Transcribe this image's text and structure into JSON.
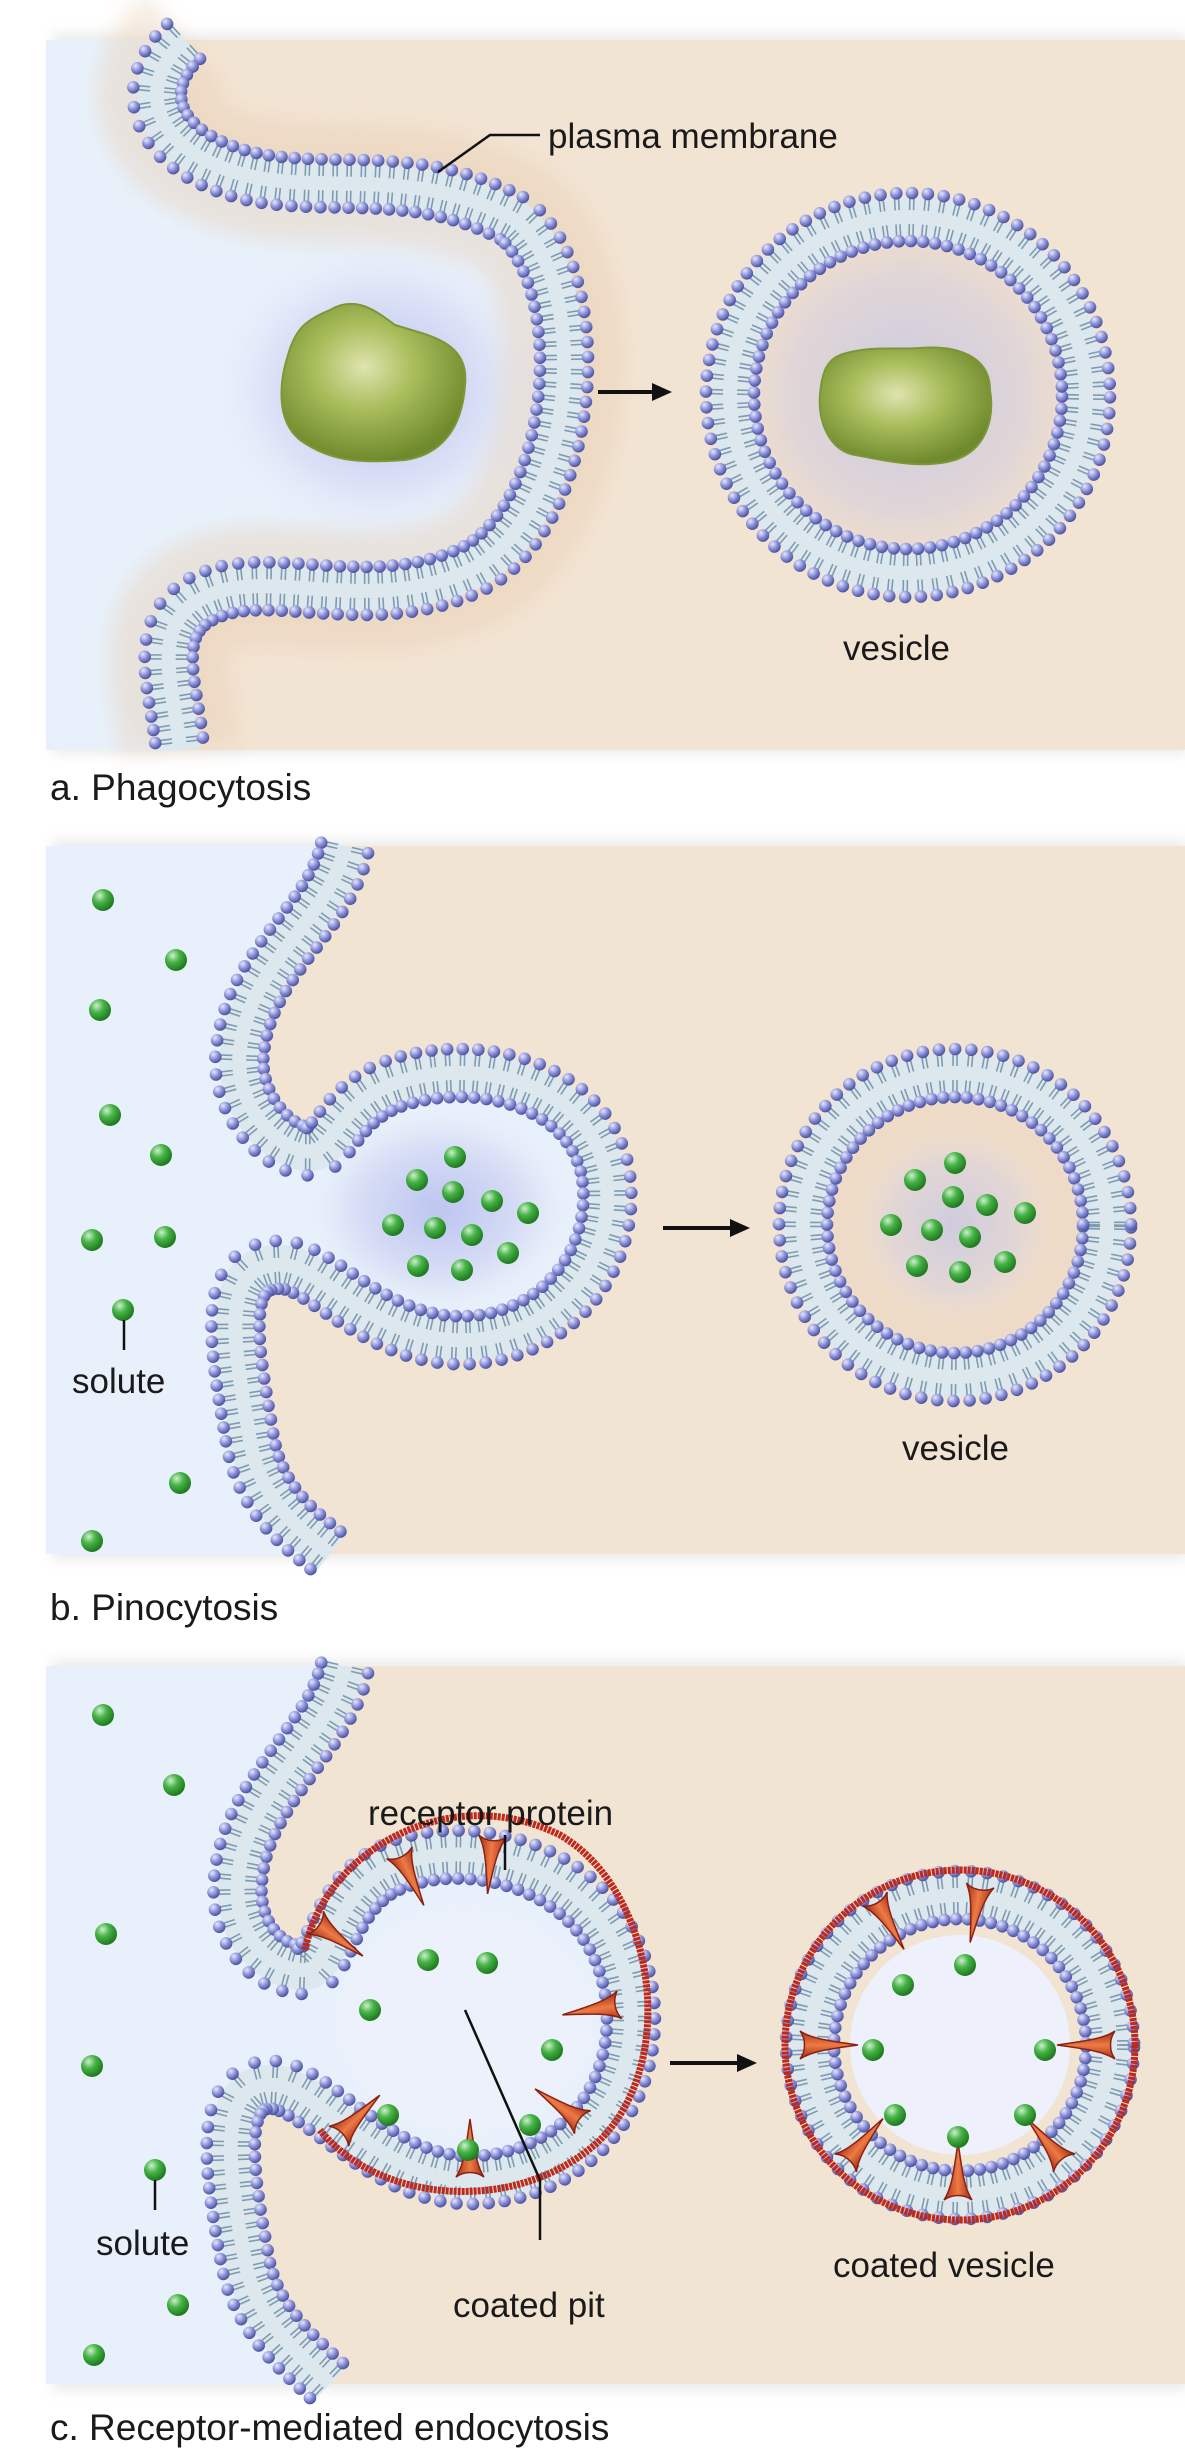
{
  "panels": {
    "a": {
      "caption": "a. Phagocytosis",
      "labels": {
        "membrane": "plasma membrane",
        "vesicle": "vesicle"
      }
    },
    "b": {
      "caption": "b. Pinocytosis",
      "labels": {
        "solute": "solute",
        "vesicle": "vesicle"
      }
    },
    "c": {
      "caption": "c. Receptor-mediated endocytosis",
      "labels": {
        "receptor": "receptor protein",
        "solute": "solute",
        "pit": "coated pit",
        "vesicle": "coated vesicle"
      }
    }
  },
  "colors": {
    "outside": "#e8f1fb",
    "cytoplasm": "#f2e4d3",
    "head": "#8a90d8",
    "tail": "#7f9bb0",
    "layer_fill": "#dde8ee",
    "particle": "#9bb24a",
    "solute": "#3fa83f",
    "coat": "#c0291a",
    "receptor": "#d8522a"
  }
}
